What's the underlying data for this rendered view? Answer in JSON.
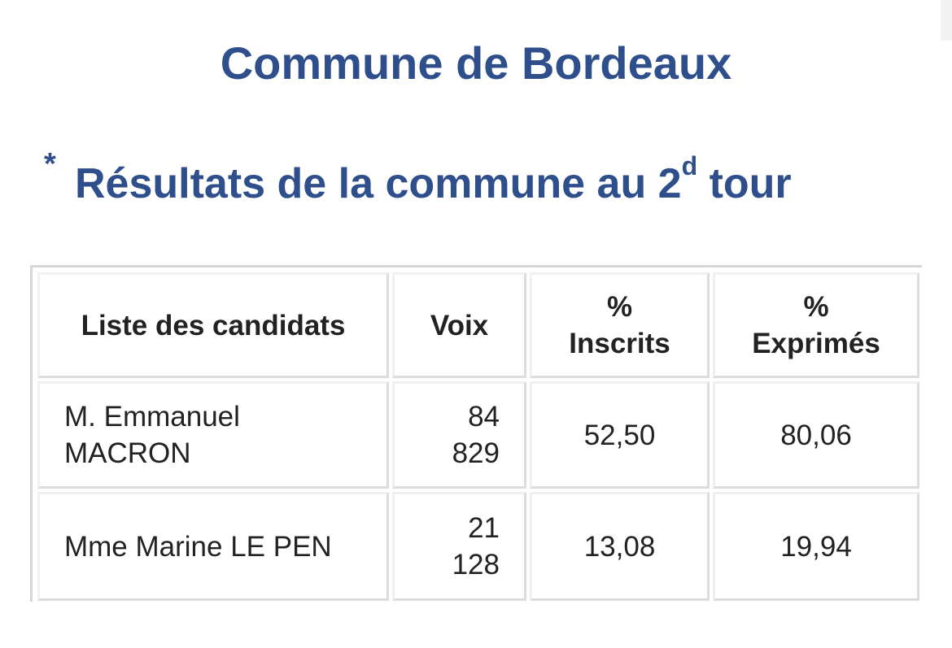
{
  "page": {
    "title": "Commune de Bordeaux"
  },
  "section": {
    "marker": "*",
    "heading_main": "Résultats de la commune au 2",
    "heading_sup": "d",
    "heading_end": " tour"
  },
  "table": {
    "headers": {
      "candidates": "Liste des candidats",
      "votes": "Voix",
      "pct_registered_symbol": "%",
      "pct_registered_label": "Inscrits",
      "pct_expressed_symbol": "%",
      "pct_expressed_label": "Exprimés"
    },
    "rows": [
      {
        "candidate_line1": "M. Emmanuel",
        "candidate_line2": "MACRON",
        "votes_line1": "84",
        "votes_line2": "829",
        "pct_registered": "52,50",
        "pct_expressed": "80,06"
      },
      {
        "candidate_line1": "Mme Marine LE PEN",
        "candidate_line2": "",
        "votes_line1": "21",
        "votes_line2": "128",
        "pct_registered": "13,08",
        "pct_expressed": "19,94"
      }
    ]
  },
  "colors": {
    "heading": "#2e4f8c",
    "text": "#222222",
    "border": "#dcdcdc"
  }
}
